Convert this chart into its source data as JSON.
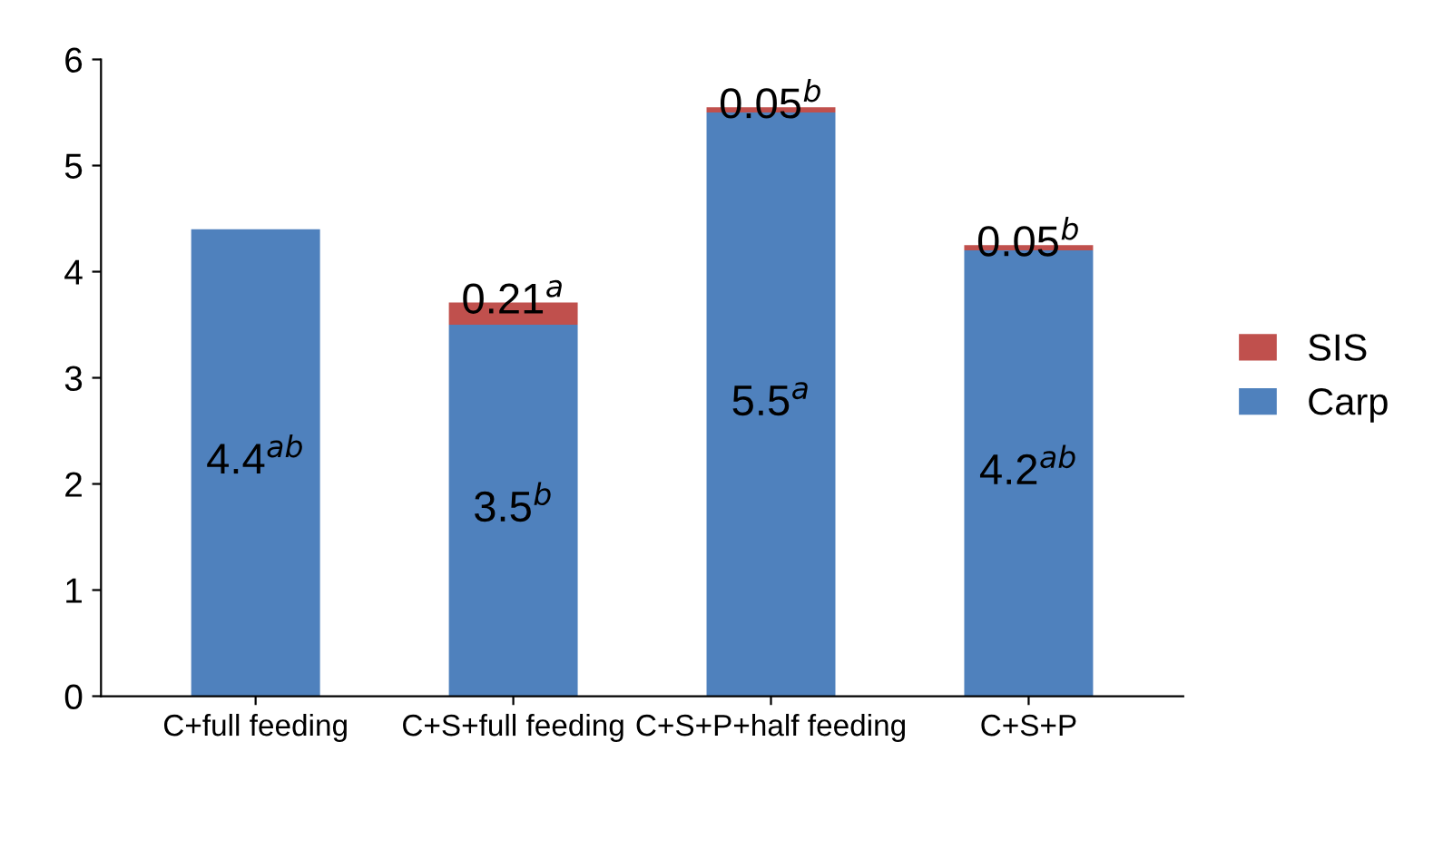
{
  "chart_data": {
    "type": "bar",
    "stacked": true,
    "categories": [
      "C+full feeding",
      "C+S+full feeding",
      "C+S+P+half feeding",
      "C+S+P"
    ],
    "series": [
      {
        "name": "Carp",
        "color": "#4f81bd",
        "values": [
          4.4,
          3.5,
          5.5,
          4.2
        ],
        "value_labels": [
          "4.4$^{ab}$",
          "3.5$^{b}$",
          "5.5$^{a}$",
          "4.2$^{ab}$"
        ]
      },
      {
        "name": "SIS",
        "color": "#c0504d",
        "values": [
          0,
          0.21,
          0.05,
          0.05
        ],
        "value_labels": [
          null,
          "0.21$^{a}$",
          "0.05$^{b}$",
          "0.05$^{b}$"
        ]
      }
    ],
    "ylim": [
      0,
      6
    ],
    "yticks": [
      0,
      1,
      2,
      3,
      4,
      5,
      6
    ],
    "grid": false,
    "legend": "right"
  }
}
